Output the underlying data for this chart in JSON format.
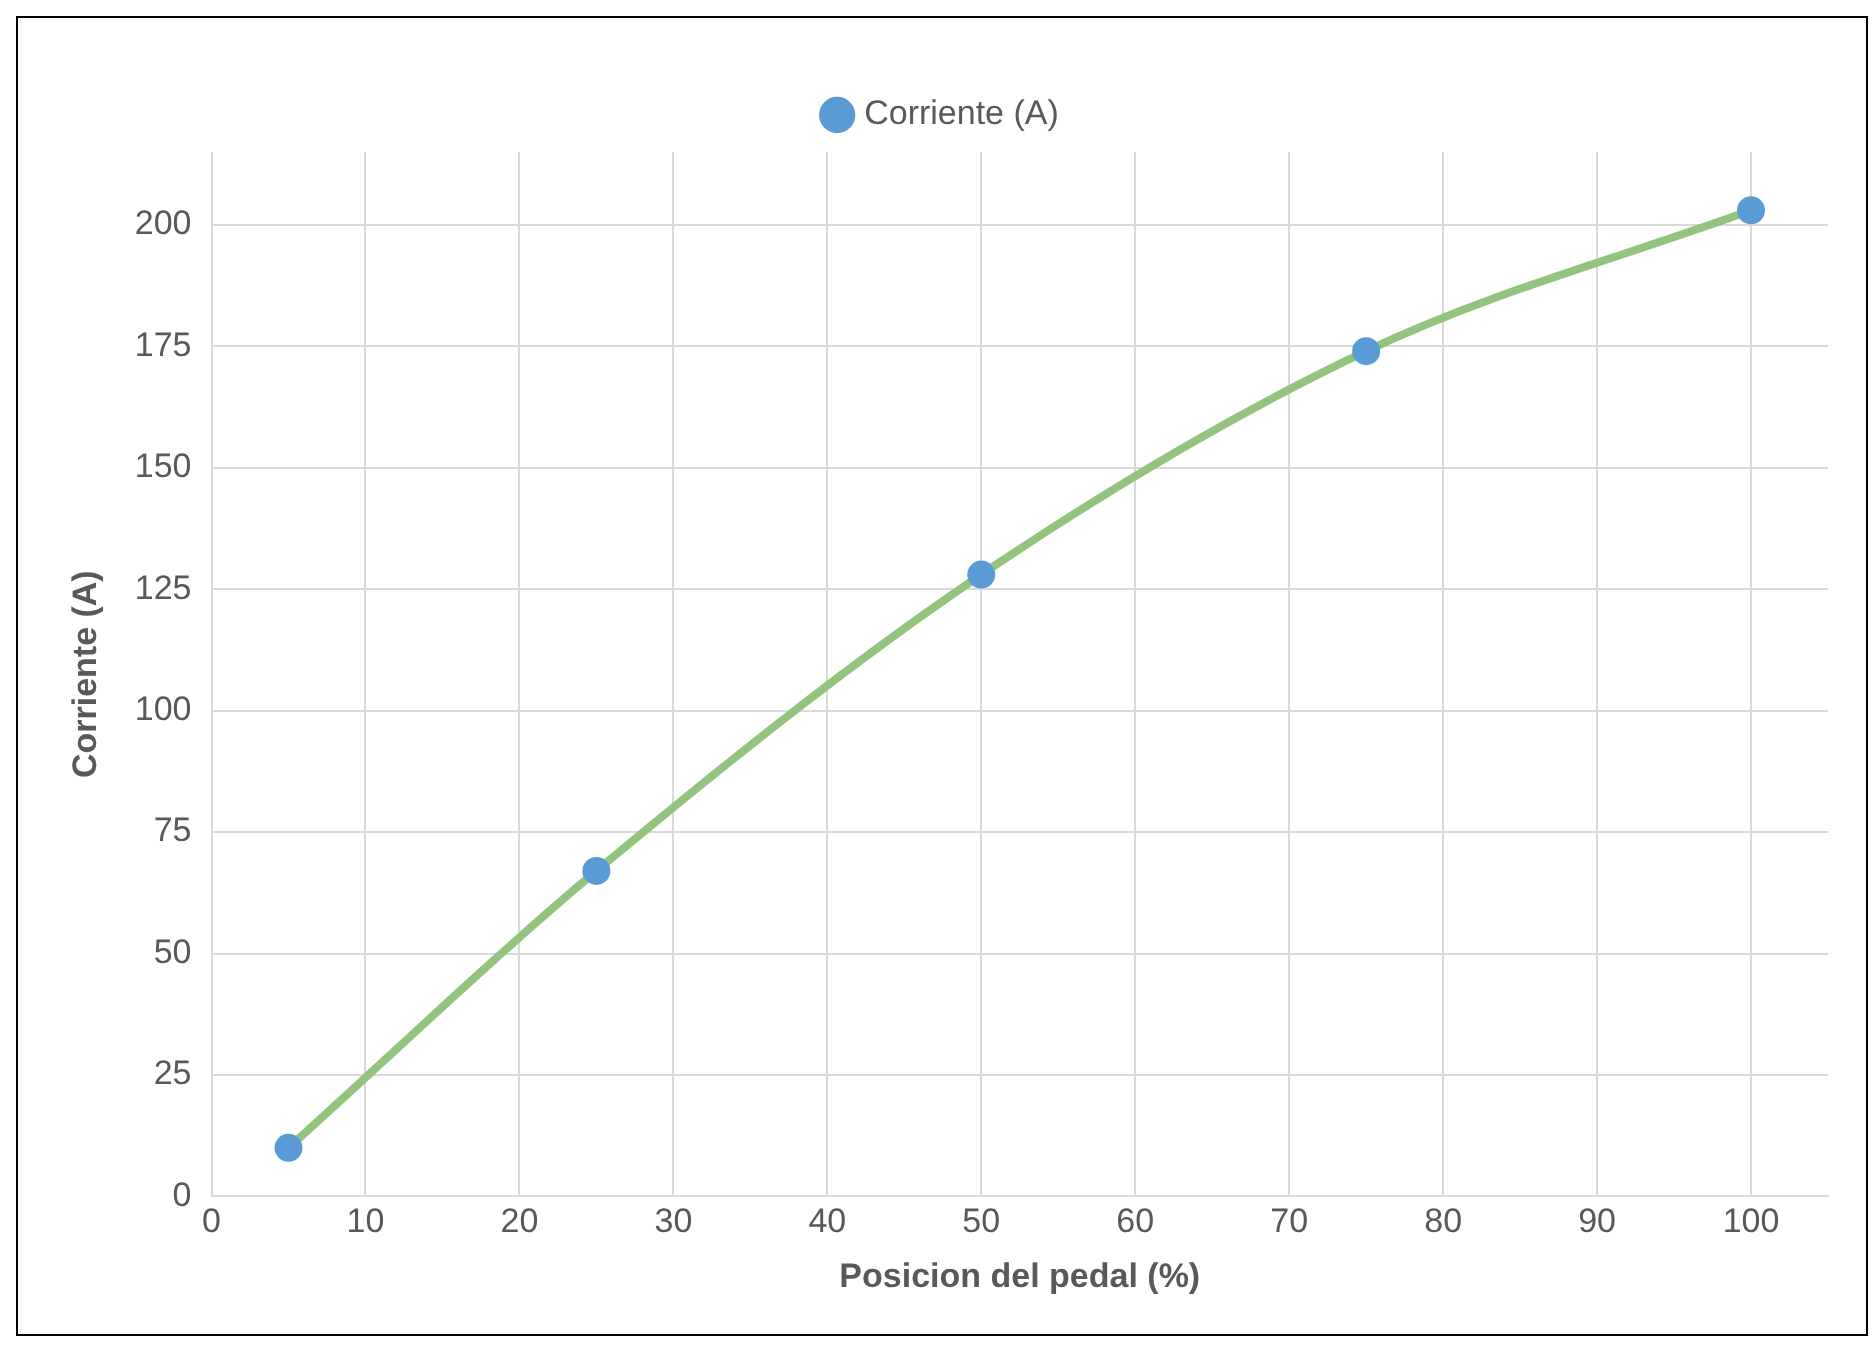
{
  "chart_data": {
    "type": "line",
    "xlabel": "Posicion del pedal (%)",
    "ylabel": "Corriente (A)",
    "x": [
      5,
      25,
      50,
      75,
      100
    ],
    "series": [
      {
        "name": "Corriente (A)",
        "color": "#93c47d",
        "values": [
          10,
          67,
          128,
          174,
          203
        ]
      }
    ],
    "xlim": [
      0,
      105
    ],
    "xticks": [
      0,
      10,
      20,
      30,
      40,
      50,
      60,
      70,
      80,
      90,
      100
    ],
    "ylim": [
      0,
      215
    ],
    "yticks": [
      0,
      25,
      50,
      75,
      100,
      125,
      150,
      175,
      200
    ],
    "grid": true,
    "legend": "top",
    "marker": "circle",
    "line_style": "solid"
  }
}
